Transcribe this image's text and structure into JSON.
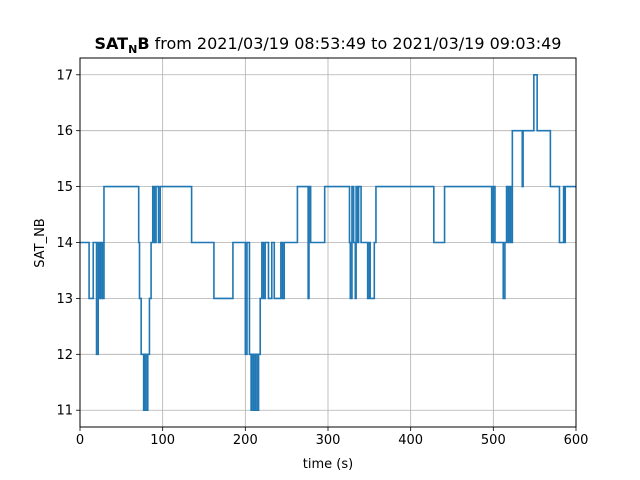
{
  "chart_data": {
    "type": "line",
    "title_prefix_bold": "SAT",
    "title_subscript_bold": "N",
    "title_suffix_bold": "B",
    "title_rest": " from 2021/03/19 08:53:49 to 2021/03/19 09:03:49",
    "xlabel": "time (s)",
    "ylabel": "SAT_NB",
    "xlim": [
      0,
      600
    ],
    "ylim": [
      10.7,
      17.3
    ],
    "xticks": [
      0,
      100,
      200,
      300,
      400,
      500,
      600
    ],
    "yticks": [
      11,
      12,
      13,
      14,
      15,
      16,
      17
    ],
    "grid": true,
    "line_color": "#1f77b4",
    "series": [
      {
        "step": "post",
        "x": [
          0,
          11,
          16,
          20,
          22,
          24,
          25,
          27,
          29,
          71,
          72,
          74,
          77,
          78,
          80,
          82,
          84,
          86,
          88,
          90,
          92,
          95,
          97,
          135,
          162,
          185,
          200,
          202,
          205,
          207,
          208,
          210,
          212,
          214,
          216,
          218,
          220,
          222,
          224,
          228,
          232,
          235,
          243,
          245,
          247,
          253,
          263,
          276,
          277,
          279,
          296,
          326,
          327,
          329,
          331,
          333,
          334,
          336,
          337,
          340,
          346,
          348,
          350,
          351,
          353,
          356,
          358,
          428,
          440,
          441,
          497,
          498,
          500,
          502,
          504,
          512,
          514,
          516,
          518,
          519,
          521,
          523,
          524,
          535,
          536,
          538,
          549,
          553,
          569,
          580,
          585,
          586,
          587,
          600
        ],
        "values": [
          14,
          13,
          14,
          12,
          14,
          13,
          14,
          13,
          15,
          14,
          13,
          12,
          11,
          12,
          11,
          12,
          13,
          14,
          15,
          14,
          15,
          14,
          15,
          14,
          13,
          14,
          12,
          14,
          12,
          11,
          12,
          11,
          12,
          11,
          12,
          13,
          14,
          13,
          14,
          13,
          14,
          13,
          14,
          13,
          14,
          14,
          15,
          13,
          15,
          14,
          15,
          14,
          13,
          15,
          14,
          13,
          15,
          14,
          15,
          14,
          14,
          13,
          14,
          13,
          13,
          14,
          15,
          14,
          14,
          15,
          15,
          14,
          15,
          14,
          14,
          13,
          14,
          15,
          14,
          15,
          14,
          16,
          16,
          15,
          16,
          16,
          17,
          16,
          15,
          14,
          15,
          14,
          15,
          15
        ]
      }
    ]
  }
}
